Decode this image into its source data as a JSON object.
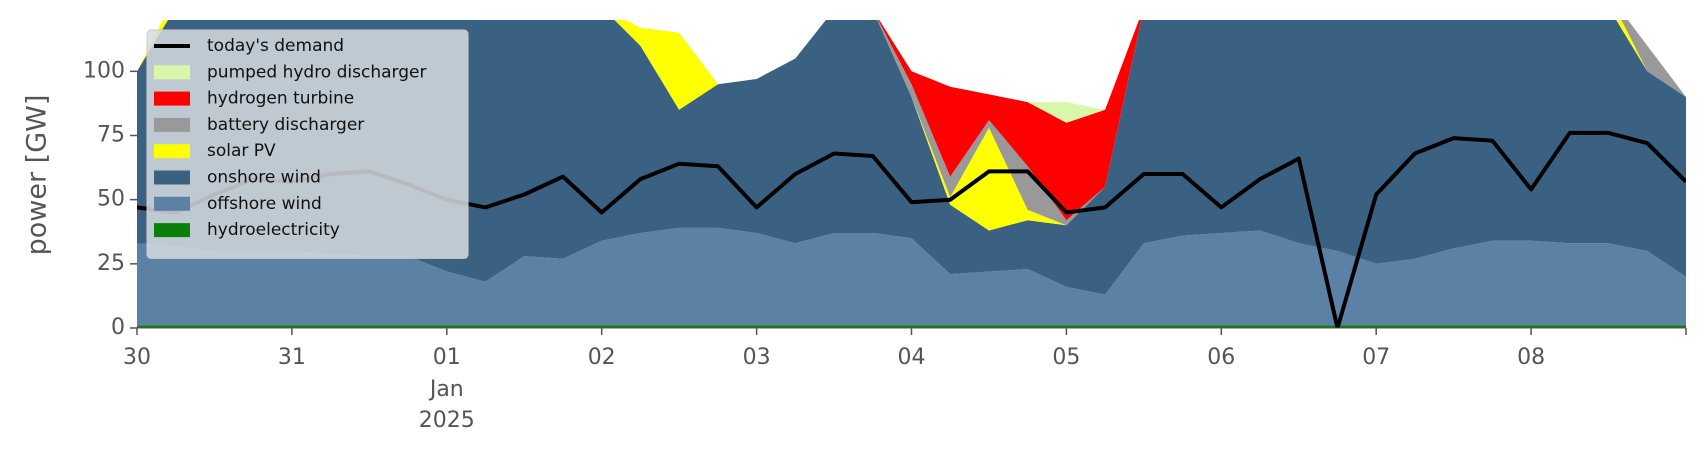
{
  "chart_data": {
    "type": "area",
    "y_label": "power [GW]",
    "x": [
      "2024-12-30 00:00",
      "2024-12-30 06:00",
      "2024-12-30 12:00",
      "2024-12-30 18:00",
      "2024-12-31 00:00",
      "2024-12-31 06:00",
      "2024-12-31 12:00",
      "2024-12-31 18:00",
      "2025-01-01 00:00",
      "2025-01-01 06:00",
      "2025-01-01 12:00",
      "2025-01-01 18:00",
      "2025-01-02 00:00",
      "2025-01-02 06:00",
      "2025-01-02 12:00",
      "2025-01-02 18:00",
      "2025-01-03 00:00",
      "2025-01-03 06:00",
      "2025-01-03 12:00",
      "2025-01-03 18:00",
      "2025-01-04 00:00",
      "2025-01-04 06:00",
      "2025-01-04 12:00",
      "2025-01-04 18:00",
      "2025-01-05 00:00",
      "2025-01-05 06:00",
      "2025-01-05 12:00",
      "2025-01-05 18:00",
      "2025-01-06 00:00",
      "2025-01-06 06:00",
      "2025-01-06 12:00",
      "2025-01-06 18:00",
      "2025-01-07 00:00",
      "2025-01-07 06:00",
      "2025-01-07 12:00",
      "2025-01-07 18:00",
      "2025-01-08 00:00",
      "2025-01-08 06:00",
      "2025-01-08 12:00",
      "2025-01-08 18:00",
      "2025-01-09 00:00"
    ],
    "xlim": [
      "2024-12-30 00:00",
      "2025-01-09 00:00"
    ],
    "xticks": [
      {
        "value": "2024-12-30 00:00",
        "label": "30"
      },
      {
        "value": "2024-12-31 00:00",
        "label": "31"
      },
      {
        "value": "2025-01-01 00:00",
        "label": "01"
      },
      {
        "value": "2025-01-02 00:00",
        "label": "02"
      },
      {
        "value": "2025-01-03 00:00",
        "label": "03"
      },
      {
        "value": "2025-01-04 00:00",
        "label": "04"
      },
      {
        "value": "2025-01-05 00:00",
        "label": "05"
      },
      {
        "value": "2025-01-06 00:00",
        "label": "06"
      },
      {
        "value": "2025-01-07 00:00",
        "label": "07"
      },
      {
        "value": "2025-01-08 00:00",
        "label": "08"
      }
    ],
    "x_sublabel": [
      "Jan",
      "2025"
    ],
    "ylim": [
      0,
      120
    ],
    "yticks": [
      0,
      25,
      50,
      75,
      100
    ],
    "legend": "upper left",
    "series": [
      {
        "name": "today's demand",
        "type": "line",
        "color": "#000000",
        "values": [
          47,
          45,
          52,
          58,
          57,
          60,
          61,
          56,
          50,
          47,
          52,
          59,
          45,
          58,
          64,
          63,
          47,
          60,
          68,
          67,
          49,
          50,
          61,
          61,
          45,
          47,
          60,
          60,
          47,
          58,
          66,
          0,
          52,
          68,
          74,
          73,
          54,
          76,
          76,
          72,
          57
        ]
      },
      {
        "name": "pumped hydro discharger",
        "type": "area",
        "color": "#d8f7a8",
        "values": [
          0,
          0,
          0,
          0,
          0,
          0,
          0,
          0,
          0,
          0,
          0,
          0,
          0,
          0,
          0,
          0,
          0,
          0,
          0,
          0,
          0,
          0,
          0,
          0,
          8,
          0,
          0,
          0,
          0,
          0,
          0,
          0,
          0,
          0,
          0,
          0,
          0,
          0,
          0,
          0,
          0
        ]
      },
      {
        "name": "hydrogen turbine",
        "type": "area",
        "color": "#ff0000",
        "values": [
          0,
          0,
          0,
          0,
          0,
          0,
          0,
          0,
          0,
          0,
          0,
          0,
          0,
          0,
          0,
          0,
          0,
          0,
          0,
          0,
          5,
          35,
          10,
          25,
          38,
          30,
          0,
          0,
          0,
          0,
          0,
          0,
          0,
          0,
          0,
          0,
          0,
          0,
          0,
          0,
          0
        ]
      },
      {
        "name": "battery discharger",
        "type": "area",
        "color": "#999999",
        "values": [
          0,
          0,
          0,
          0,
          0,
          0,
          0,
          0,
          0,
          0,
          0,
          0,
          0,
          0,
          0,
          0,
          0,
          0,
          0,
          0,
          5,
          8,
          3,
          17,
          2,
          0,
          0,
          0,
          0,
          0,
          0,
          0,
          0,
          0,
          0,
          0,
          0,
          0,
          0,
          10,
          0
        ]
      },
      {
        "name": "solar PV",
        "type": "area",
        "color": "#ffff00",
        "values": [
          0,
          5,
          5,
          0,
          0,
          0,
          5,
          0,
          0,
          0,
          0,
          0,
          0,
          7,
          30,
          0,
          0,
          0,
          0,
          0,
          0,
          3,
          40,
          4,
          0,
          0,
          0,
          0,
          0,
          0,
          0,
          0,
          0,
          0,
          0,
          0,
          0,
          0,
          5,
          0,
          0
        ]
      },
      {
        "name": "onshore wind",
        "type": "area",
        "color": "#3b6182",
        "values": [
          67,
          93,
          95,
          95,
          95,
          96,
          97,
          97,
          103,
          107,
          97,
          98,
          91,
          73,
          46,
          56,
          60,
          72,
          87,
          87,
          55,
          27,
          16,
          19,
          24,
          42,
          92,
          89,
          88,
          87,
          92,
          95,
          100,
          98,
          94,
          91,
          91,
          92,
          92,
          70,
          70
        ]
      },
      {
        "name": "offshore wind",
        "type": "area",
        "color": "#5b81a5",
        "values": [
          32,
          31,
          29,
          29,
          29,
          28,
          27,
          27,
          21,
          17,
          27,
          26,
          33,
          36,
          38,
          38,
          36,
          32,
          36,
          36,
          34,
          20,
          21,
          22,
          15,
          12,
          32,
          35,
          36,
          37,
          32,
          29,
          24,
          26,
          30,
          33,
          33,
          32,
          32,
          29,
          19
        ]
      },
      {
        "name": "hydroelectricity",
        "type": "area",
        "color": "#0a800a",
        "values": [
          1,
          1,
          1,
          1,
          1,
          1,
          1,
          1,
          1,
          1,
          1,
          1,
          1,
          1,
          1,
          1,
          1,
          1,
          1,
          1,
          1,
          1,
          1,
          1,
          1,
          1,
          1,
          1,
          1,
          1,
          1,
          1,
          1,
          1,
          1,
          1,
          1,
          1,
          1,
          1,
          1
        ]
      }
    ]
  }
}
